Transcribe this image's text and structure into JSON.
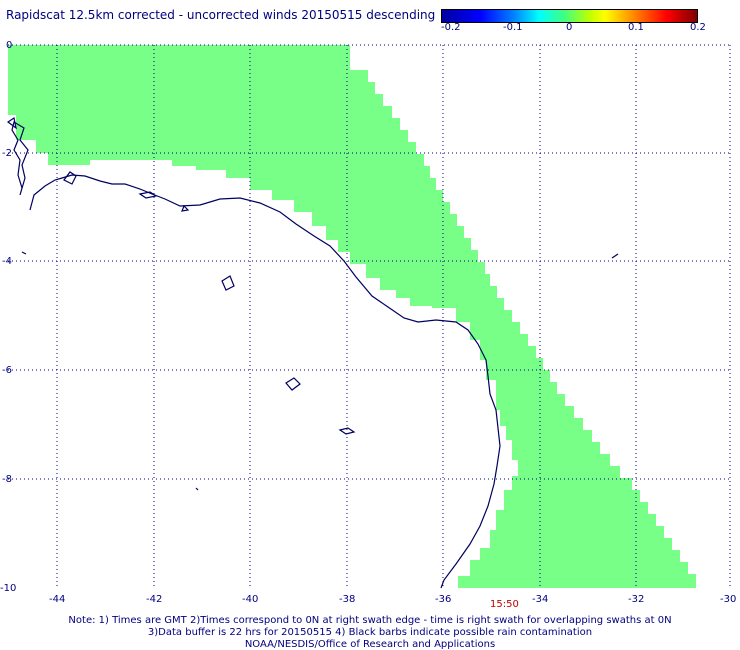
{
  "title": "Rapidscat 12.5km corrected - uncorrected winds 20150515 descending",
  "colorbar": {
    "ticks": [
      "-0.2",
      "-0.1",
      "0",
      "0.1",
      "0.2"
    ],
    "colors": [
      "#0000a0",
      "#0000ff",
      "#00ffff",
      "#40ff80",
      "#ffff00",
      "#ff0000",
      "#800000"
    ]
  },
  "map": {
    "lat_labels": [
      "0",
      "-2",
      "-4",
      "-6",
      "-8",
      "-10"
    ],
    "lon_labels": [
      "-44",
      "-42",
      "-40",
      "-38",
      "-36",
      "-34",
      "-32",
      "-30"
    ],
    "swath_color": "#77ff88",
    "coast_color": "#000060",
    "grid_color": "#000080",
    "time_label": "15:50"
  },
  "notes": {
    "line1": "Note: 1) Times are GMT 2)Times correspond to 0N at right swath edge - time is right swath for overlapping swaths at 0N",
    "line2": "3)Data buffer is 22 hrs for 20150515 4) Black barbs indicate possible rain contamination",
    "line3": "NOAA/NESDIS/Office of Research and Applications"
  }
}
